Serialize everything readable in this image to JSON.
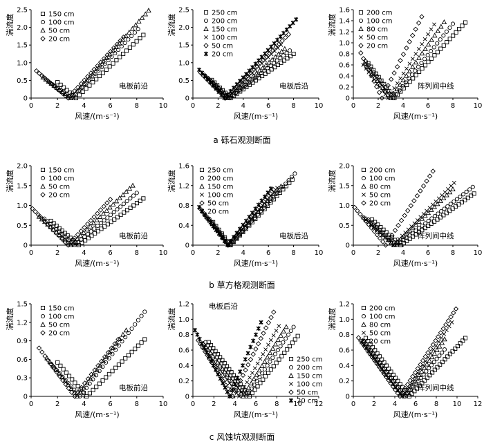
{
  "rows": [
    {
      "caption": "a  砾石观测断面"
    },
    {
      "caption": "b  草方格观测断面"
    },
    {
      "caption": "c  风蚀坑观测断面"
    }
  ],
  "chart_data": [
    {
      "type": "scatter",
      "panel": "a-left",
      "title": "电板前沿",
      "xlabel": "风速/(m·s⁻¹)",
      "ylabel": "湍流度",
      "xlim": [
        0,
        10
      ],
      "ylim": [
        0,
        2.5
      ],
      "xticks": [
        0,
        2,
        4,
        6,
        8,
        10
      ],
      "yticks": [
        0,
        0.5,
        1.0,
        1.5,
        2.0,
        2.5
      ],
      "series": [
        {
          "name": "150 cm",
          "marker": "square",
          "v0": 3.4,
          "kl": 0.32,
          "kr": 0.35,
          "xmin": 2.0,
          "xmax": 8.5
        },
        {
          "name": "100 cm",
          "marker": "circle",
          "v0": 3.1,
          "kl": 0.26,
          "kr": 0.39,
          "xmin": 1.4,
          "xmax": 8.1
        },
        {
          "name": "50 cm",
          "marker": "triangle",
          "v0": 3.0,
          "kl": 0.28,
          "kr": 0.42,
          "xmin": 0.9,
          "xmax": 8.9
        },
        {
          "name": "20 cm",
          "marker": "diamond",
          "v0": 2.8,
          "kl": 0.32,
          "kr": 0.41,
          "xmin": 0.4,
          "xmax": 7.0
        }
      ]
    },
    {
      "type": "scatter",
      "panel": "a-mid",
      "title": "电板后沿",
      "xlabel": "风速/(m·s⁻¹)",
      "ylabel": "湍流度",
      "xlim": [
        0,
        10
      ],
      "ylim": [
        0,
        2.5
      ],
      "xticks": [
        0,
        2,
        4,
        6,
        8,
        10
      ],
      "yticks": [
        0,
        0.5,
        1.0,
        1.5,
        2.0,
        2.5
      ],
      "series": [
        {
          "name": "250 cm",
          "marker": "square",
          "v0": 3.0,
          "kl": 0.34,
          "kr": 0.25,
          "xmin": 1.5,
          "xmax": 8.0
        },
        {
          "name": "200 cm",
          "marker": "circle",
          "v0": 2.9,
          "kl": 0.33,
          "kr": 0.28,
          "xmin": 1.2,
          "xmax": 7.7
        },
        {
          "name": "150 cm",
          "marker": "triangle",
          "v0": 2.8,
          "kl": 0.35,
          "kr": 0.31,
          "xmin": 1.0,
          "xmax": 7.3
        },
        {
          "name": "100 cm",
          "marker": "x",
          "v0": 2.7,
          "kl": 0.35,
          "kr": 0.35,
          "xmin": 0.8,
          "xmax": 7.0
        },
        {
          "name": "50 cm",
          "marker": "diamond",
          "v0": 2.6,
          "kl": 0.36,
          "kr": 0.36,
          "xmin": 0.6,
          "xmax": 7.6
        },
        {
          "name": "20 cm",
          "marker": "star",
          "v0": 2.5,
          "kl": 0.4,
          "kr": 0.39,
          "xmin": 0.5,
          "xmax": 8.2
        }
      ]
    },
    {
      "type": "scatter",
      "panel": "a-right",
      "title": "阵列间中线",
      "xlabel": "风速/(m·s⁻¹)",
      "ylabel": "湍流度",
      "xlim": [
        0,
        10
      ],
      "ylim": [
        0,
        1.6
      ],
      "xticks": [
        0,
        2,
        4,
        6,
        8,
        10
      ],
      "yticks": [
        0,
        0.2,
        0.4,
        0.6,
        0.8,
        1.0,
        1.2,
        1.4,
        1.6
      ],
      "series": [
        {
          "name": "200 cm",
          "marker": "square",
          "v0": 3.3,
          "kl": 0.3,
          "kr": 0.24,
          "xmin": 1.2,
          "xmax": 9.0
        },
        {
          "name": "100 cm",
          "marker": "circle",
          "v0": 3.2,
          "kl": 0.3,
          "kr": 0.28,
          "xmin": 1.0,
          "xmax": 8.0
        },
        {
          "name": "80 cm",
          "marker": "triangle",
          "v0": 3.0,
          "kl": 0.3,
          "kr": 0.32,
          "xmin": 0.9,
          "xmax": 7.3
        },
        {
          "name": "50 cm",
          "marker": "x",
          "v0": 2.8,
          "kl": 0.3,
          "kr": 0.36,
          "xmin": 0.8,
          "xmax": 6.5
        },
        {
          "name": "20 cm",
          "marker": "diamond",
          "v0": 2.3,
          "kl": 0.48,
          "kr": 0.46,
          "xmin": 0.6,
          "xmax": 5.5
        }
      ]
    },
    {
      "type": "scatter",
      "panel": "b-left",
      "title": "电板前沿",
      "xlabel": "风速/(m·s⁻¹)",
      "ylabel": "湍流度",
      "xlim": [
        0,
        10
      ],
      "ylim": [
        0,
        2.0
      ],
      "xticks": [
        0,
        2,
        4,
        6,
        8,
        10
      ],
      "yticks": [
        0,
        0.5,
        1.0,
        1.5,
        2.0
      ],
      "series": [
        {
          "name": "150 cm",
          "marker": "square",
          "v0": 3.6,
          "kl": 0.29,
          "kr": 0.24,
          "xmin": 1.5,
          "xmax": 8.5
        },
        {
          "name": "100 cm",
          "marker": "circle",
          "v0": 3.3,
          "kl": 0.29,
          "kr": 0.28,
          "xmin": 1.0,
          "xmax": 8.0
        },
        {
          "name": "50 cm",
          "marker": "triangle",
          "v0": 3.0,
          "kl": 0.3,
          "kr": 0.32,
          "xmin": 0.6,
          "xmax": 7.7
        },
        {
          "name": "20 cm",
          "marker": "diamond",
          "v0": 2.8,
          "kl": 0.34,
          "kr": 0.36,
          "xmin": 0.1,
          "xmax": 6.0
        }
      ]
    },
    {
      "type": "scatter",
      "panel": "b-mid",
      "title": "电板后沿",
      "xlabel": "风速/(m·s⁻¹)",
      "ylabel": "湍流度",
      "xlim": [
        0,
        10
      ],
      "ylim": [
        0,
        1.6
      ],
      "xticks": [
        0,
        2,
        4,
        6,
        8,
        10
      ],
      "yticks": [
        0,
        0.4,
        0.8,
        1.2,
        1.6
      ],
      "series": [
        {
          "name": "250 cm",
          "marker": "square",
          "v0": 3.0,
          "kl": 0.33,
          "kr": 0.27,
          "xmin": 1.6,
          "xmax": 7.9
        },
        {
          "name": "200 cm",
          "marker": "circle",
          "v0": 2.95,
          "kl": 0.32,
          "kr": 0.28,
          "xmin": 1.3,
          "xmax": 8.1
        },
        {
          "name": "150 cm",
          "marker": "triangle",
          "v0": 2.9,
          "kl": 0.32,
          "kr": 0.29,
          "xmin": 1.1,
          "xmax": 7.0
        },
        {
          "name": "100 cm",
          "marker": "x",
          "v0": 2.85,
          "kl": 0.32,
          "kr": 0.3,
          "xmin": 0.9,
          "xmax": 6.7
        },
        {
          "name": "50 cm",
          "marker": "diamond",
          "v0": 2.8,
          "kl": 0.33,
          "kr": 0.31,
          "xmin": 0.6,
          "xmax": 6.4
        },
        {
          "name": "20 cm",
          "marker": "star",
          "v0": 2.75,
          "kl": 0.34,
          "kr": 0.33,
          "xmin": 0.5,
          "xmax": 6.2
        }
      ]
    },
    {
      "type": "scatter",
      "panel": "b-right",
      "title": "阵列间中线",
      "xlabel": "风速/(m·s⁻¹)",
      "ylabel": "湍流度",
      "xlim": [
        0,
        10
      ],
      "ylim": [
        0,
        2.0
      ],
      "xticks": [
        0,
        2,
        4,
        6,
        8,
        10
      ],
      "yticks": [
        0,
        0.5,
        1.0,
        1.5,
        2.0
      ],
      "series": [
        {
          "name": "200 cm",
          "marker": "square",
          "v0": 3.8,
          "kl": 0.28,
          "kr": 0.22,
          "xmin": 1.5,
          "xmax": 9.7
        },
        {
          "name": "100 cm",
          "marker": "circle",
          "v0": 3.5,
          "kl": 0.28,
          "kr": 0.24,
          "xmin": 1.2,
          "xmax": 9.6
        },
        {
          "name": "80 cm",
          "marker": "triangle",
          "v0": 3.3,
          "kl": 0.29,
          "kr": 0.3,
          "xmin": 1.0,
          "xmax": 8.0
        },
        {
          "name": "50 cm",
          "marker": "x",
          "v0": 3.2,
          "kl": 0.29,
          "kr": 0.32,
          "xmin": 0.8,
          "xmax": 8.1
        },
        {
          "name": "20 cm",
          "marker": "diamond",
          "v0": 2.6,
          "kl": 0.38,
          "kr": 0.49,
          "xmin": 0.1,
          "xmax": 6.4
        }
      ]
    },
    {
      "type": "scatter",
      "panel": "c-left",
      "title": "电板前沿",
      "xlabel": "风速/(m·s⁻¹)",
      "ylabel": "湍流度",
      "xlim": [
        0,
        10
      ],
      "ylim": [
        0,
        1.5
      ],
      "xticks": [
        0,
        2,
        4,
        6,
        8,
        10
      ],
      "yticks": [
        0,
        0.3,
        0.6,
        0.9,
        1.2,
        1.5
      ],
      "series": [
        {
          "name": "150 cm",
          "marker": "square",
          "v0": 4.2,
          "kl": 0.25,
          "kr": 0.21,
          "xmin": 2.0,
          "xmax": 8.6
        },
        {
          "name": "100 cm",
          "marker": "circle",
          "v0": 3.7,
          "kl": 0.24,
          "kr": 0.28,
          "xmin": 1.5,
          "xmax": 8.6
        },
        {
          "name": "50 cm",
          "marker": "triangle",
          "v0": 3.5,
          "kl": 0.27,
          "kr": 0.29,
          "xmin": 1.2,
          "xmax": 7.2
        },
        {
          "name": "20 cm",
          "marker": "diamond",
          "v0": 3.3,
          "kl": 0.29,
          "kr": 0.28,
          "xmin": 0.6,
          "xmax": 6.6
        }
      ]
    },
    {
      "type": "scatter",
      "panel": "c-mid",
      "title": "电板后沿",
      "xlabel": "风速/(m·s⁻¹)",
      "ylabel": "湍流度",
      "xlim": [
        0,
        12
      ],
      "ylim": [
        0,
        1.2
      ],
      "xticks": [
        0,
        2,
        4,
        6,
        8,
        10,
        12
      ],
      "yticks": [
        0,
        0.2,
        0.4,
        0.6,
        0.8,
        1.0,
        1.2
      ],
      "series": [
        {
          "name": "250 cm",
          "marker": "square",
          "v0": 5.4,
          "kl": 0.18,
          "kr": 0.17,
          "xmin": 1.5,
          "xmax": 10.0
        },
        {
          "name": "200 cm",
          "marker": "circle",
          "v0": 5.1,
          "kl": 0.18,
          "kr": 0.2,
          "xmin": 1.2,
          "xmax": 9.6
        },
        {
          "name": "150 cm",
          "marker": "triangle",
          "v0": 4.8,
          "kl": 0.18,
          "kr": 0.22,
          "xmin": 1.0,
          "xmax": 8.9
        },
        {
          "name": "100 cm",
          "marker": "x",
          "v0": 4.4,
          "kl": 0.19,
          "kr": 0.24,
          "xmin": 0.8,
          "xmax": 8.2
        },
        {
          "name": "50 cm",
          "marker": "diamond",
          "v0": 3.8,
          "kl": 0.22,
          "kr": 0.28,
          "xmin": 0.5,
          "xmax": 7.7
        },
        {
          "name": "20 cm",
          "marker": "star",
          "v0": 3.5,
          "kl": 0.26,
          "kr": 0.32,
          "xmin": 0.2,
          "xmax": 6.5
        }
      ]
    },
    {
      "type": "scatter",
      "panel": "c-right",
      "title": "阵列间中线",
      "xlabel": "风速/(m·s⁻¹)",
      "ylabel": "湍流度",
      "xlim": [
        0,
        12
      ],
      "ylim": [
        0,
        1.2
      ],
      "xticks": [
        0,
        2,
        4,
        6,
        8,
        10,
        12
      ],
      "yticks": [
        0,
        0.2,
        0.4,
        0.6,
        0.8,
        1.0,
        1.2
      ],
      "series": [
        {
          "name": "200 cm",
          "marker": "square",
          "v0": 5.4,
          "kl": 0.18,
          "kr": 0.14,
          "xmin": 1.2,
          "xmax": 10.8
        },
        {
          "name": "100 cm",
          "marker": "circle",
          "v0": 5.0,
          "kl": 0.18,
          "kr": 0.16,
          "xmin": 1.0,
          "xmax": 8.8
        },
        {
          "name": "80 cm",
          "marker": "triangle",
          "v0": 4.9,
          "kl": 0.18,
          "kr": 0.19,
          "xmin": 0.9,
          "xmax": 8.8
        },
        {
          "name": "50 cm",
          "marker": "x",
          "v0": 4.7,
          "kl": 0.18,
          "kr": 0.2,
          "xmin": 0.8,
          "xmax": 9.5
        },
        {
          "name": "20 cm",
          "marker": "diamond",
          "v0": 4.5,
          "kl": 0.19,
          "kr": 0.21,
          "xmin": 0.5,
          "xmax": 9.9
        }
      ]
    }
  ]
}
